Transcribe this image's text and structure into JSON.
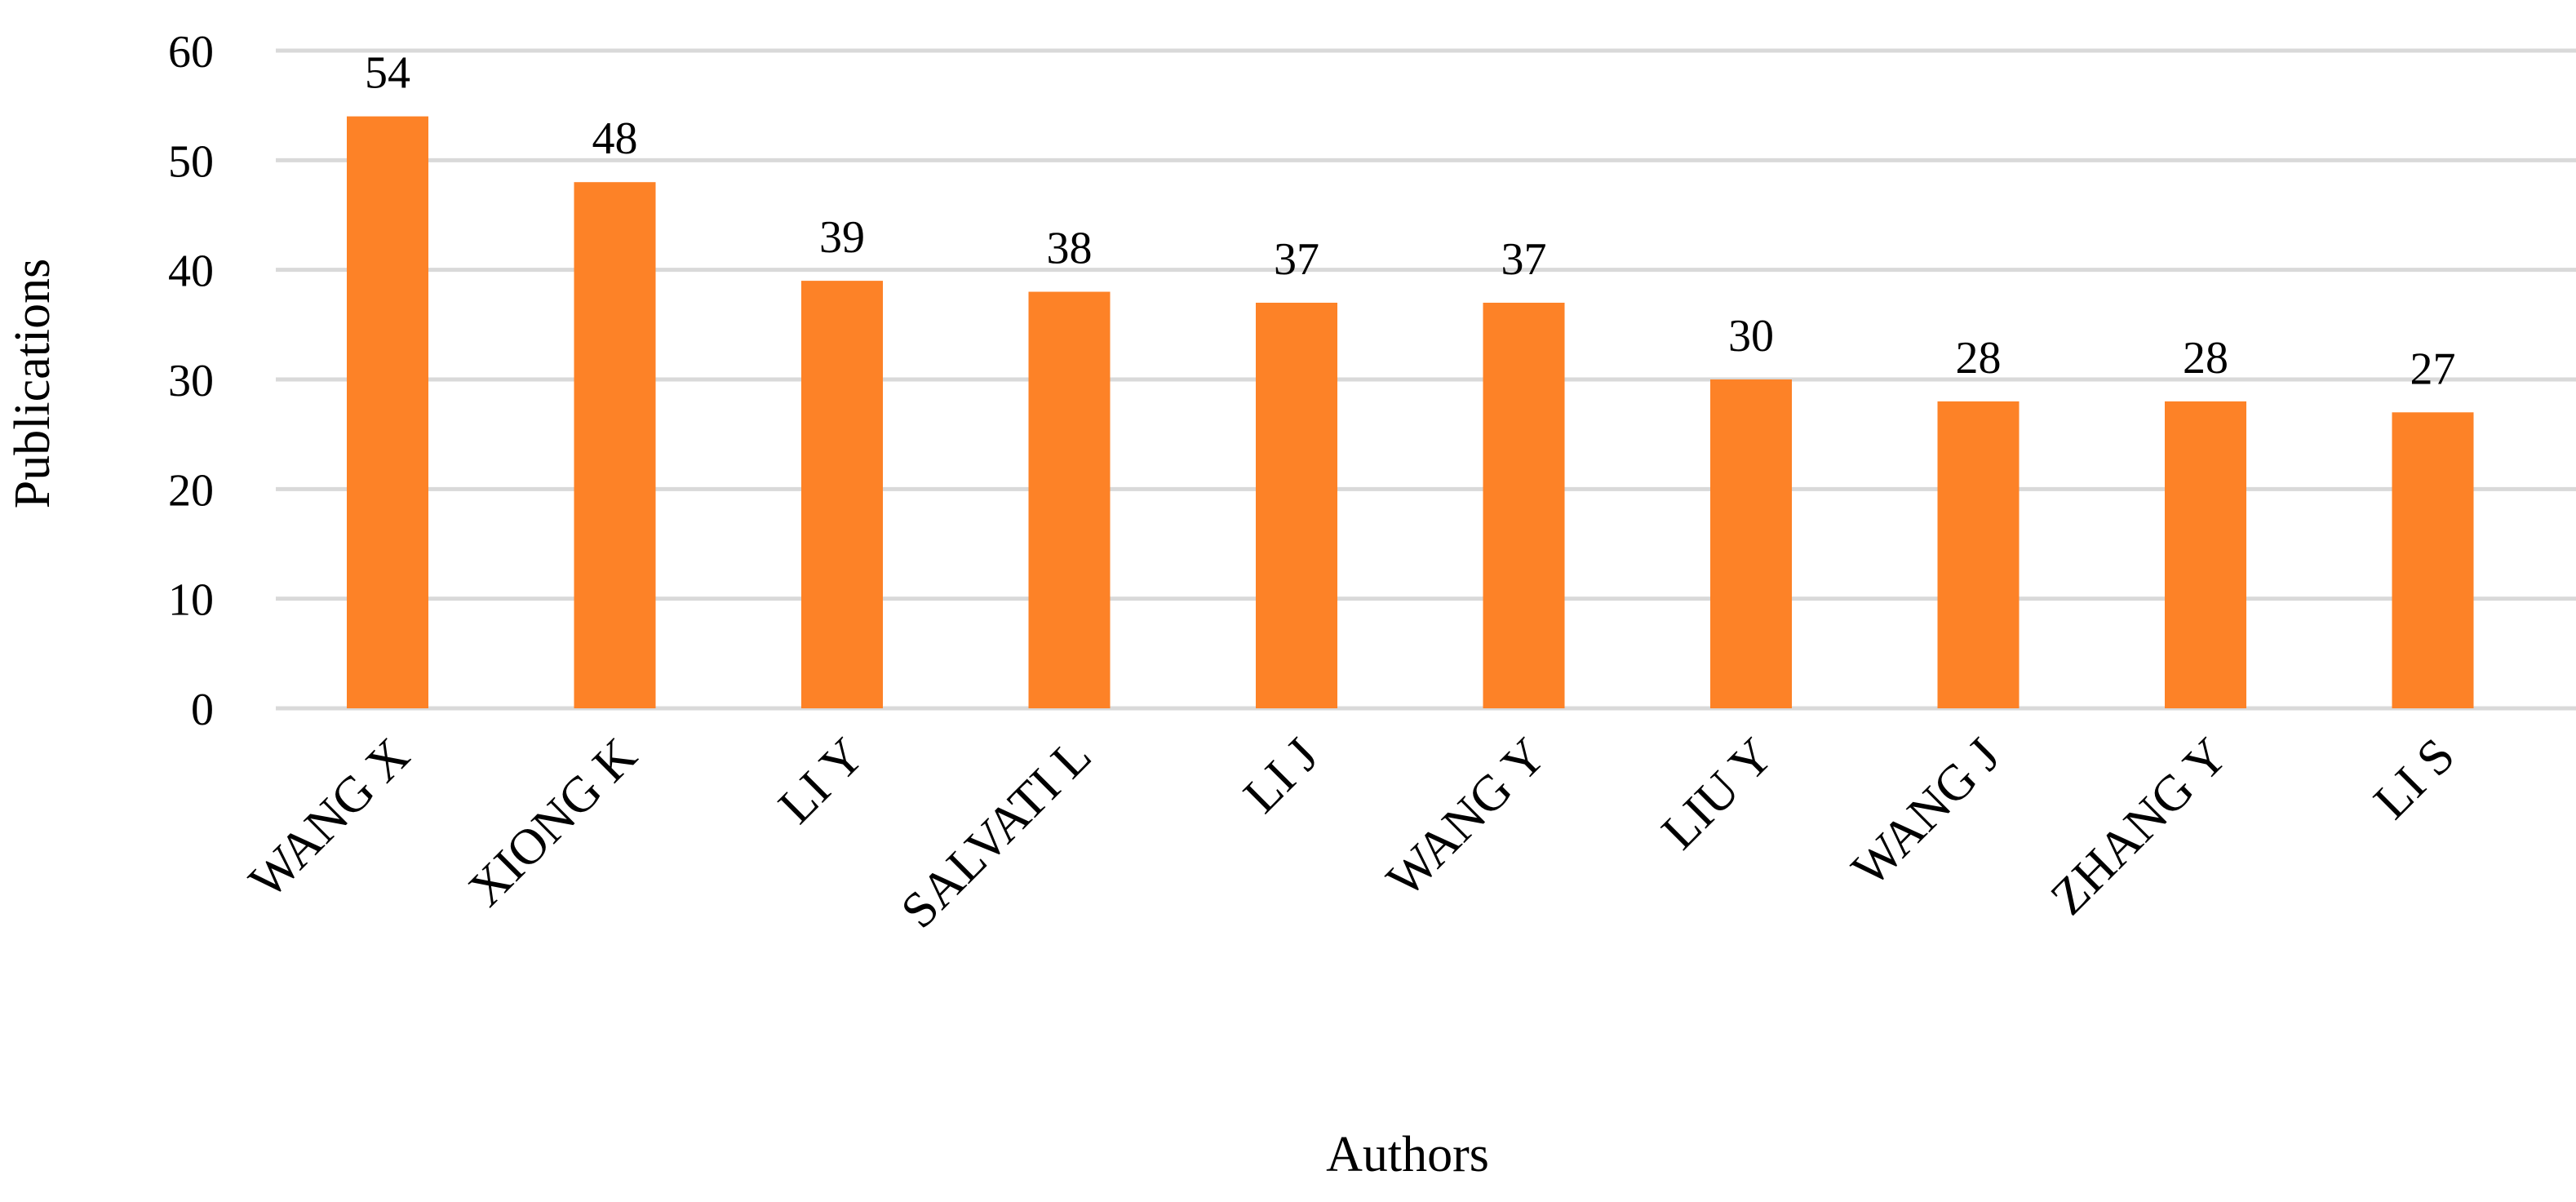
{
  "chart_data": {
    "type": "bar",
    "title": "",
    "xlabel": "Authors",
    "ylabel": "Publications",
    "categories": [
      "WANG X",
      "XIONG K",
      "LI Y",
      "SALVATI L",
      "LI J",
      "WANG Y",
      "LIU Y",
      "WANG J",
      "ZHANG Y",
      "LI S"
    ],
    "values": [
      54,
      48,
      39,
      38,
      37,
      37,
      30,
      28,
      28,
      27
    ],
    "ylim": [
      0,
      60
    ],
    "yticks": [
      0,
      10,
      20,
      30,
      40,
      50,
      60
    ],
    "grid": true,
    "legend": "none",
    "bar_color": "#FD8227",
    "grid_color": "#D9D9D9"
  }
}
